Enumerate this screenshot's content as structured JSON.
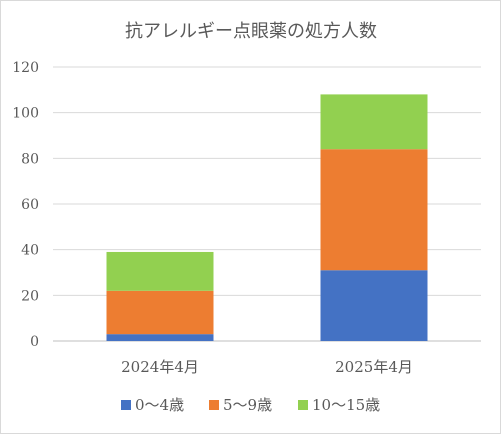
{
  "chart_data": {
    "type": "bar",
    "stacked": true,
    "title": "抗アレルギー点眼薬の処方人数",
    "categories": [
      "2024年4月",
      "2025年4月"
    ],
    "series": [
      {
        "name": "0～4歳",
        "color": "#4472c4",
        "values": [
          3,
          31
        ]
      },
      {
        "name": "5～9歳",
        "color": "#ed7d31",
        "values": [
          19,
          53
        ]
      },
      {
        "name": "10～15歳",
        "color": "#92d050",
        "values": [
          17,
          24
        ]
      }
    ],
    "ylim": [
      0,
      120
    ],
    "yticks": [
      0,
      20,
      40,
      60,
      80,
      100,
      120
    ],
    "xlabel": "",
    "ylabel": "",
    "grid": true,
    "legend_position": "bottom"
  }
}
